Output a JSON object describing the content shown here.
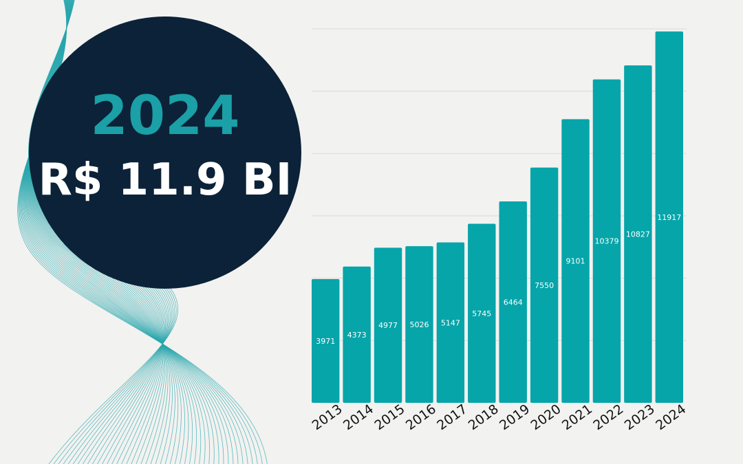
{
  "colors": {
    "background": "#f2f2f0",
    "bar": "#06a5a9",
    "badge_bg": "#0b2238",
    "badge_year": "#1aa0a6",
    "badge_value": "#ffffff",
    "wave_lines": "#2aa7ad"
  },
  "badge": {
    "year": "2024",
    "value": "R$ 11.9 BI"
  },
  "chart_data": {
    "type": "bar",
    "title": "",
    "xlabel": "",
    "ylabel": "",
    "ylim": [
      0,
      12000
    ],
    "grid": true,
    "categories": [
      "2013",
      "2014",
      "2015",
      "2016",
      "2017",
      "2018",
      "2019",
      "2020",
      "2021",
      "2022",
      "2023",
      "2024"
    ],
    "values": [
      3971,
      4373,
      4977,
      5026,
      5147,
      5745,
      6464,
      7550,
      9101,
      10379,
      10827,
      11917
    ],
    "data_labels": [
      "3971",
      "4373",
      "4977",
      "5026",
      "5147",
      "5745",
      "6464",
      "7550",
      "9101",
      "10379",
      "10827",
      "11917"
    ]
  }
}
